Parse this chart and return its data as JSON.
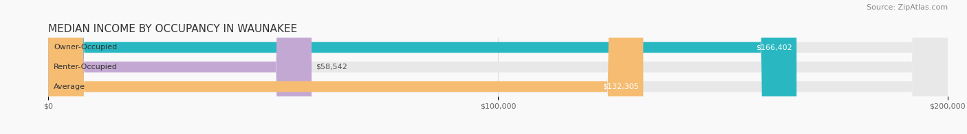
{
  "title": "MEDIAN INCOME BY OCCUPANCY IN WAUNAKEE",
  "source": "Source: ZipAtlas.com",
  "categories": [
    "Owner-Occupied",
    "Renter-Occupied",
    "Average"
  ],
  "values": [
    166402,
    58542,
    132305
  ],
  "labels": [
    "$166,402",
    "$58,542",
    "$132,305"
  ],
  "bar_colors": [
    "#29b8c2",
    "#c4a8d4",
    "#f5bc72"
  ],
  "bar_bg_color": "#e8e8e8",
  "xlim": [
    0,
    200000
  ],
  "xticks": [
    0,
    100000,
    200000
  ],
  "xtick_labels": [
    "$0",
    "$100,000",
    "$200,000"
  ],
  "title_fontsize": 11,
  "source_fontsize": 8,
  "label_fontsize": 8,
  "bar_label_fontsize": 8,
  "bar_height": 0.55,
  "background_color": "#f9f9f9",
  "grid_color": "#dddddd",
  "label_threshold": 80000
}
